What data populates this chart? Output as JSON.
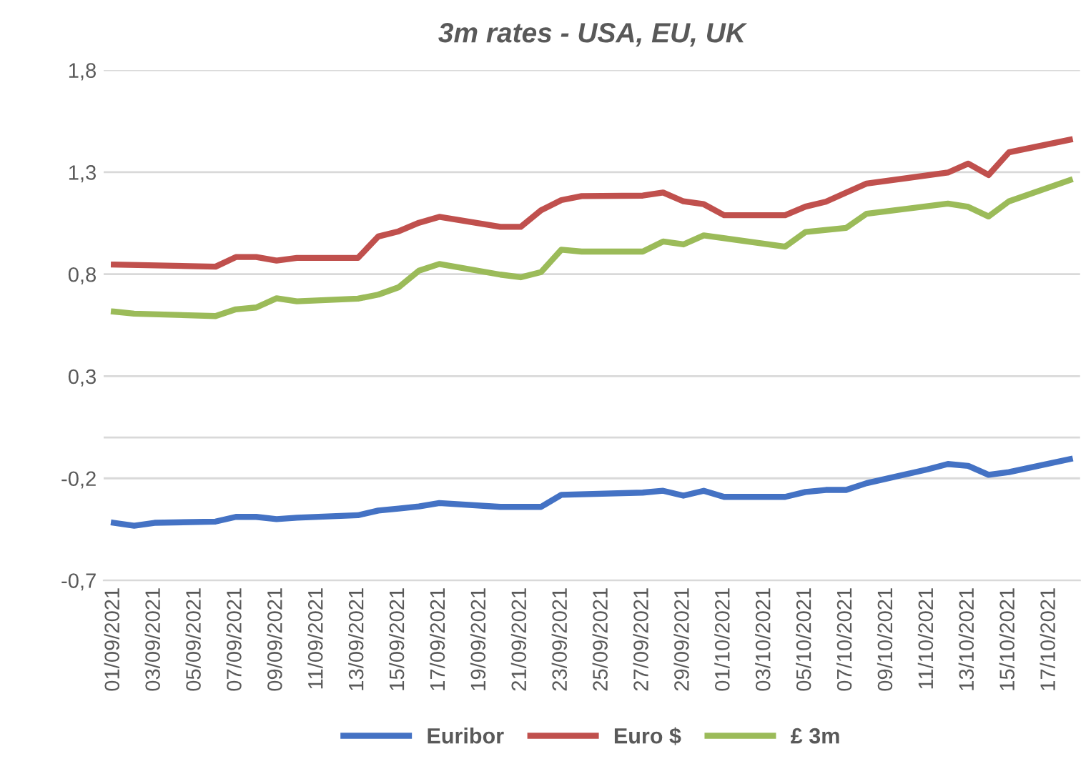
{
  "chart_data": {
    "type": "line",
    "title": "3m rates - USA, EU, UK",
    "series": [
      {
        "name": "Euribor",
        "color": "#4472c4",
        "x": [
          "2021-09-01",
          "2021-09-02",
          "2021-09-03",
          "2021-09-06",
          "2021-09-07",
          "2021-09-08",
          "2021-09-09",
          "2021-09-10",
          "2021-09-13",
          "2021-09-14",
          "2021-09-15",
          "2021-09-16",
          "2021-09-17",
          "2021-09-20",
          "2021-09-22",
          "2021-09-23",
          "2021-09-27",
          "2021-09-28",
          "2021-09-29",
          "2021-09-30",
          "2021-10-01",
          "2021-10-04",
          "2021-10-05",
          "2021-10-06",
          "2021-10-07",
          "2021-10-08",
          "2021-10-11",
          "2021-10-12",
          "2021-10-13",
          "2021-10-14",
          "2021-10-15",
          "2021-10-18"
        ],
        "values": [
          -0.418,
          -0.432,
          -0.418,
          -0.412,
          -0.389,
          -0.389,
          -0.4,
          -0.393,
          -0.381,
          -0.358,
          -0.348,
          -0.338,
          -0.321,
          -0.34,
          -0.34,
          -0.281,
          -0.27,
          -0.261,
          -0.285,
          -0.261,
          -0.291,
          -0.291,
          -0.267,
          -0.257,
          -0.257,
          -0.224,
          -0.156,
          -0.13,
          -0.139,
          -0.183,
          -0.17,
          -0.106
        ]
      },
      {
        "name": "Euro $",
        "color": "#c0504d",
        "x": [
          "2021-09-01",
          "2021-09-06",
          "2021-09-07",
          "2021-09-08",
          "2021-09-09",
          "2021-09-10",
          "2021-09-13",
          "2021-09-14",
          "2021-09-15",
          "2021-09-16",
          "2021-09-17",
          "2021-09-20",
          "2021-09-21",
          "2021-09-22",
          "2021-09-23",
          "2021-09-24",
          "2021-09-27",
          "2021-09-28",
          "2021-09-29",
          "2021-09-30",
          "2021-10-01",
          "2021-10-04",
          "2021-10-05",
          "2021-10-06",
          "2021-10-07",
          "2021-10-08",
          "2021-10-12",
          "2021-10-13",
          "2021-10-14",
          "2021-10-15",
          "2021-10-18"
        ],
        "values": [
          0.847,
          0.837,
          0.884,
          0.884,
          0.867,
          0.88,
          0.88,
          0.985,
          1.01,
          1.052,
          1.081,
          1.032,
          1.032,
          1.113,
          1.163,
          1.183,
          1.185,
          1.2,
          1.157,
          1.143,
          1.089,
          1.089,
          1.131,
          1.155,
          1.2,
          1.244,
          1.298,
          1.342,
          1.286,
          1.397,
          1.459
        ]
      },
      {
        "name": "£ 3m",
        "color": "#9bbb59",
        "x": [
          "2021-09-01",
          "2021-09-02",
          "2021-09-06",
          "2021-09-07",
          "2021-09-08",
          "2021-09-09",
          "2021-09-10",
          "2021-09-13",
          "2021-09-14",
          "2021-09-15",
          "2021-09-16",
          "2021-09-17",
          "2021-09-20",
          "2021-09-21",
          "2021-09-22",
          "2021-09-23",
          "2021-09-24",
          "2021-09-27",
          "2021-09-28",
          "2021-09-29",
          "2021-09-30",
          "2021-10-04",
          "2021-10-05",
          "2021-10-07",
          "2021-10-08",
          "2021-10-12",
          "2021-10-13",
          "2021-10-14",
          "2021-10-15",
          "2021-10-18"
        ],
        "values": [
          0.617,
          0.607,
          0.595,
          0.628,
          0.637,
          0.682,
          0.667,
          0.68,
          0.7,
          0.736,
          0.817,
          0.85,
          0.798,
          0.785,
          0.81,
          0.92,
          0.911,
          0.911,
          0.96,
          0.946,
          0.99,
          0.935,
          1.007,
          1.027,
          1.096,
          1.146,
          1.13,
          1.083,
          1.157,
          1.261
        ]
      }
    ],
    "xlim": [
      "2021-08-31T12:00",
      "2021-10-18T12:00"
    ],
    "xticks": [
      {
        "value": "2021-09-01",
        "label": "01/09/2021"
      },
      {
        "value": "2021-09-03",
        "label": "03/09/2021"
      },
      {
        "value": "2021-09-05",
        "label": "05/09/2021"
      },
      {
        "value": "2021-09-07",
        "label": "07/09/2021"
      },
      {
        "value": "2021-09-09",
        "label": "09/09/2021"
      },
      {
        "value": "2021-09-11",
        "label": "11/09/2021"
      },
      {
        "value": "2021-09-13",
        "label": "13/09/2021"
      },
      {
        "value": "2021-09-15",
        "label": "15/09/2021"
      },
      {
        "value": "2021-09-17",
        "label": "17/09/2021"
      },
      {
        "value": "2021-09-19",
        "label": "19/09/2021"
      },
      {
        "value": "2021-09-21",
        "label": "21/09/2021"
      },
      {
        "value": "2021-09-23",
        "label": "23/09/2021"
      },
      {
        "value": "2021-09-25",
        "label": "25/09/2021"
      },
      {
        "value": "2021-09-27",
        "label": "27/09/2021"
      },
      {
        "value": "2021-09-29",
        "label": "29/09/2021"
      },
      {
        "value": "2021-10-01",
        "label": "01/10/2021"
      },
      {
        "value": "2021-10-03",
        "label": "03/10/2021"
      },
      {
        "value": "2021-10-05",
        "label": "05/10/2021"
      },
      {
        "value": "2021-10-07",
        "label": "07/10/2021"
      },
      {
        "value": "2021-10-09",
        "label": "09/10/2021"
      },
      {
        "value": "2021-10-11",
        "label": "11/10/2021"
      },
      {
        "value": "2021-10-13",
        "label": "13/10/2021"
      },
      {
        "value": "2021-10-15",
        "label": "15/10/2021"
      },
      {
        "value": "2021-10-17",
        "label": "17/10/2021"
      }
    ],
    "ylim": [
      -0.7,
      1.8
    ],
    "yticks": [
      {
        "value": -0.7,
        "label": "-0,7"
      },
      {
        "value": -0.2,
        "label": "-0,2"
      },
      {
        "value": 0.3,
        "label": "0,3"
      },
      {
        "value": 0.8,
        "label": "0,8"
      },
      {
        "value": 1.3,
        "label": "1,3"
      },
      {
        "value": 1.8,
        "label": "1,8"
      }
    ],
    "ref_lines": [
      {
        "axis": "y",
        "value": 0,
        "color": "#d9d9d9",
        "line_style": "solid"
      }
    ],
    "grid": "y",
    "legend": "bottom",
    "marker": "none",
    "line_style": "solid"
  }
}
